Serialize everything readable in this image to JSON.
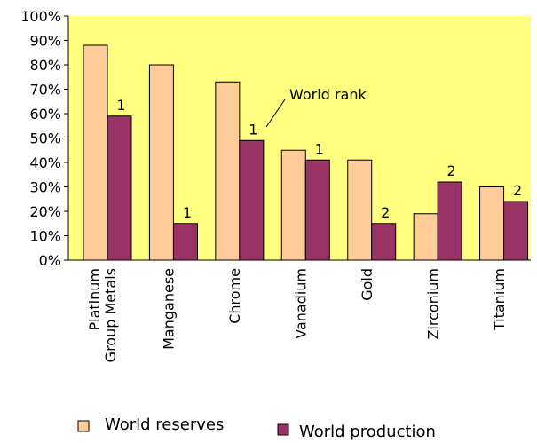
{
  "chart_data": {
    "type": "bar",
    "categories": [
      [
        "Platinum",
        "Group Metals"
      ],
      [
        "Manganese"
      ],
      [
        "Chrome"
      ],
      [
        "Vanadium"
      ],
      [
        "Gold"
      ],
      [
        "Zirconium"
      ],
      [
        "Titanium"
      ]
    ],
    "series": [
      {
        "name": "World reserves",
        "values": [
          88,
          80,
          73,
          45,
          41,
          19,
          30
        ],
        "color": "#ffcc99"
      },
      {
        "name": "World production",
        "values": [
          59,
          15,
          49,
          41,
          15,
          32,
          24
        ],
        "color": "#993366"
      }
    ],
    "world_rank": [
      "1",
      "1",
      "1",
      "1",
      "2",
      "2",
      "2"
    ],
    "annotation": "World rank",
    "ylim": [
      0,
      100
    ],
    "yticks": [
      "0%",
      "10%",
      "20%",
      "30%",
      "40%",
      "50%",
      "60%",
      "70%",
      "80%",
      "90%",
      "100%"
    ],
    "plot_background": "#ffff80",
    "grid": false,
    "legend_position": "bottom"
  }
}
